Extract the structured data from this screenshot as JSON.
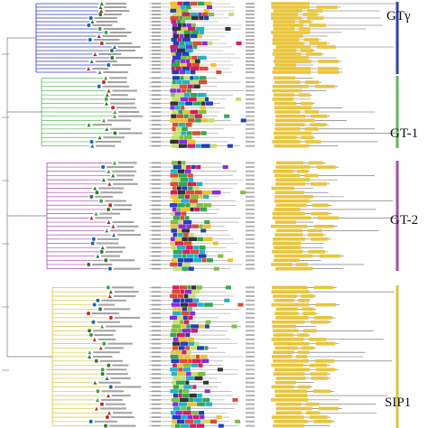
{
  "groups": [
    {
      "label": "GTγ",
      "color": "#2b3fb8",
      "leaves": 20
    },
    {
      "label": "GT-1",
      "color": "#5cb85c",
      "leaves": 17
    },
    {
      "label": "GT-2",
      "color": "#a64ca6",
      "leaves": 26
    },
    {
      "label": "SIP1",
      "color": "#d4c73a",
      "leaves": 33
    }
  ],
  "palette": {
    "motif_colors": [
      "#1f3fbf",
      "#2fa84f",
      "#e04a2f",
      "#8a2be2",
      "#f2c12e",
      "#1fb3c9",
      "#7fbf3f",
      "#d81b60",
      "#333333",
      "#c8e06b"
    ],
    "gene_bar": "#e9c53a",
    "leaf_marker_colors": [
      "#2e7d32",
      "#1565c0",
      "#c62828",
      "#43a047"
    ]
  }
}
